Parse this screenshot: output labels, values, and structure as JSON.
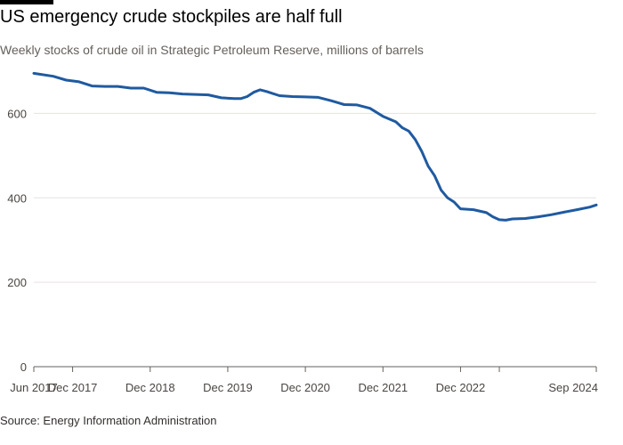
{
  "title": "US emergency crude stockpiles are half full",
  "subtitle": "Weekly stocks of crude oil in Strategic Petroleum Reserve, millions of barrels",
  "source": "Source: Energy Information Administration",
  "colors": {
    "line": "#1f5aa0",
    "grid": "#e6e2df",
    "axis": "#66605c"
  },
  "chart_data": {
    "type": "line",
    "title": "US emergency crude stockpiles are half full",
    "xlabel": "",
    "ylabel": "",
    "ylim": [
      0,
      700
    ],
    "xlim": [
      "2017-06",
      "2024-09"
    ],
    "grid": true,
    "yticks": [
      0,
      200,
      400,
      600
    ],
    "xticks": [
      {
        "date": "2017-06",
        "label": "Jun 2017"
      },
      {
        "date": "2017-12",
        "label": "Dec 2017"
      },
      {
        "date": "2018-12",
        "label": "Dec 2018"
      },
      {
        "date": "2019-12",
        "label": "Dec 2019"
      },
      {
        "date": "2020-12",
        "label": "Dec 2020"
      },
      {
        "date": "2021-12",
        "label": "Dec 2021"
      },
      {
        "date": "2022-12",
        "label": "Dec 2022"
      },
      {
        "date": "2023-06",
        "label": ""
      },
      {
        "date": "2024-09",
        "label": "Sep 2024"
      }
    ],
    "series": [
      {
        "name": "",
        "points": [
          [
            "2017-06",
            695
          ],
          [
            "2017-09",
            688
          ],
          [
            "2017-11",
            679
          ],
          [
            "2018-01",
            675
          ],
          [
            "2018-03",
            665
          ],
          [
            "2018-05",
            664
          ],
          [
            "2018-07",
            664
          ],
          [
            "2018-09",
            660
          ],
          [
            "2018-11",
            660
          ],
          [
            "2019-01",
            650
          ],
          [
            "2019-03",
            649
          ],
          [
            "2019-05",
            646
          ],
          [
            "2019-07",
            645
          ],
          [
            "2019-09",
            644
          ],
          [
            "2019-11",
            637
          ],
          [
            "2020-01",
            635
          ],
          [
            "2020-02",
            635
          ],
          [
            "2020-03",
            640
          ],
          [
            "2020-04",
            650
          ],
          [
            "2020-05",
            656
          ],
          [
            "2020-06",
            652
          ],
          [
            "2020-08",
            642
          ],
          [
            "2020-10",
            640
          ],
          [
            "2020-12",
            639
          ],
          [
            "2021-02",
            638
          ],
          [
            "2021-04",
            630
          ],
          [
            "2021-06",
            621
          ],
          [
            "2021-08",
            620
          ],
          [
            "2021-10",
            612
          ],
          [
            "2021-12",
            593
          ],
          [
            "2022-02",
            580
          ],
          [
            "2022-03",
            566
          ],
          [
            "2022-04",
            558
          ],
          [
            "2022-05",
            538
          ],
          [
            "2022-06",
            510
          ],
          [
            "2022-07",
            475
          ],
          [
            "2022-08",
            452
          ],
          [
            "2022-09",
            418
          ],
          [
            "2022-10",
            400
          ],
          [
            "2022-11",
            390
          ],
          [
            "2022-12",
            374
          ],
          [
            "2023-02",
            372
          ],
          [
            "2023-04",
            365
          ],
          [
            "2023-05",
            355
          ],
          [
            "2023-06",
            348
          ],
          [
            "2023-07",
            347
          ],
          [
            "2023-08",
            350
          ],
          [
            "2023-10",
            351
          ],
          [
            "2023-12",
            355
          ],
          [
            "2024-02",
            360
          ],
          [
            "2024-04",
            366
          ],
          [
            "2024-06",
            372
          ],
          [
            "2024-08",
            378
          ],
          [
            "2024-09",
            383
          ]
        ]
      }
    ]
  }
}
